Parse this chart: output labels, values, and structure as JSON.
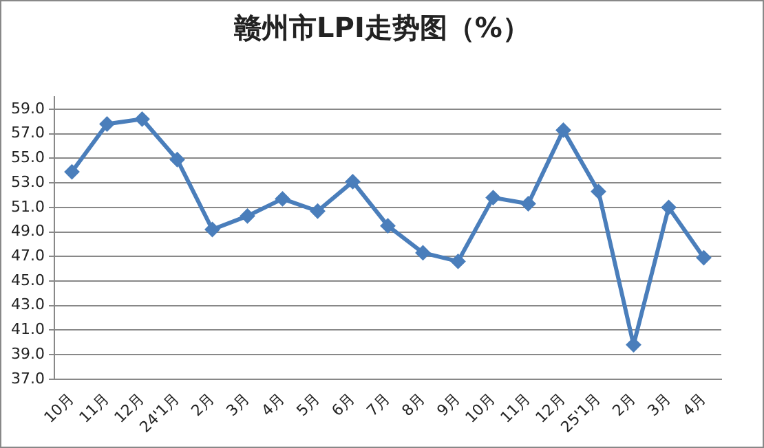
{
  "chart_data": {
    "type": "line",
    "title": "赣州市LPI走势图（%）",
    "categories": [
      "10月",
      "11月",
      "12月",
      "24'1月",
      "2月",
      "3月",
      "4月",
      "5月",
      "6月",
      "7月",
      "8月",
      "9月",
      "10月",
      "11月",
      "12月",
      "25'1月",
      "2月",
      "3月",
      "4月"
    ],
    "series": [
      {
        "color": "#4a7ebb",
        "values": [
          53.9,
          57.8,
          58.2,
          54.9,
          49.2,
          50.3,
          51.7,
          50.7,
          53.1,
          49.5,
          47.3,
          46.6,
          51.8,
          51.3,
          57.3,
          52.3,
          39.8,
          51.0,
          46.9
        ]
      }
    ],
    "ylim": [
      37,
      60
    ],
    "yticks": [
      {
        "value": 37,
        "label": "37.0"
      },
      {
        "value": 39,
        "label": "39.0"
      },
      {
        "value": 41,
        "label": "41.0"
      },
      {
        "value": 43,
        "label": "43.0"
      },
      {
        "value": 45,
        "label": "45.0"
      },
      {
        "value": 47,
        "label": "47.0"
      },
      {
        "value": 49,
        "label": "49.0"
      },
      {
        "value": 51,
        "label": "51.0"
      },
      {
        "value": 53,
        "label": "53.0"
      },
      {
        "value": 55,
        "label": "55.0"
      },
      {
        "value": 57,
        "label": "57.0"
      },
      {
        "value": 59,
        "label": "59.0"
      }
    ],
    "grid": "y",
    "legend": false,
    "marker": "diamond",
    "line_style": "solid"
  }
}
